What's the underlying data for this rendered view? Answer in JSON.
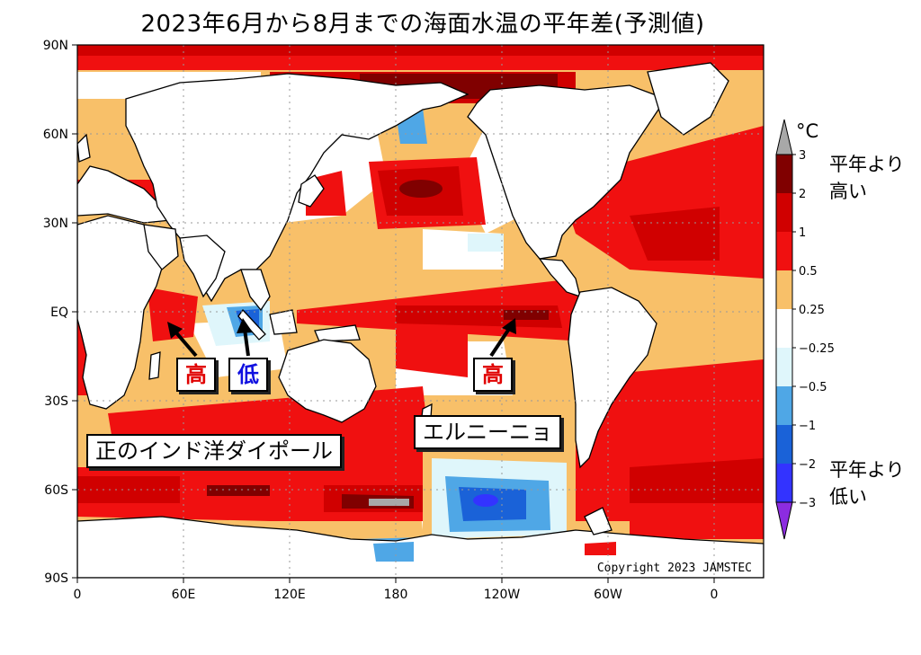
{
  "title": "2023年6月から8月までの海面水温の平年差(予測値)",
  "map": {
    "lat_ticks": [
      "90N",
      "60N",
      "30N",
      "EQ",
      "30S",
      "60S",
      "90S"
    ],
    "lon_ticks": [
      "0",
      "60E",
      "120E",
      "180",
      "120W",
      "60W",
      "0"
    ],
    "copyright": "Copyright 2023 JAMSTEC",
    "colors": {
      "ocean_neutral": "#ffffff",
      "plus_025_05": "#f8c069",
      "plus_05_1": "#f01010",
      "plus_1_2": "#d00000",
      "plus_2_3": "#800000",
      "above_3": "#a8a8a8",
      "minus_025_05": "#dff6fb",
      "minus_05_1": "#4fa7e6",
      "minus_1_2": "#1a62d8",
      "minus_2_3": "#0000ff",
      "below_minus3": "#8c2ce0",
      "land": "#ffffff"
    }
  },
  "annotations": {
    "high_indian": "高",
    "low_indian": "低",
    "high_pacific": "高",
    "iod": "正のインド洋ダイポール",
    "elnino": "エルニーニョ"
  },
  "legend": {
    "unit": "°C",
    "above_label_1": "平年より",
    "above_label_2": "高い",
    "below_label_1": "平年より",
    "below_label_2": "低い",
    "ticks": [
      "3",
      "2",
      "1",
      "0.5",
      "0.25",
      "−0.25",
      "−0.5",
      "−1",
      "−2",
      "−3"
    ]
  }
}
